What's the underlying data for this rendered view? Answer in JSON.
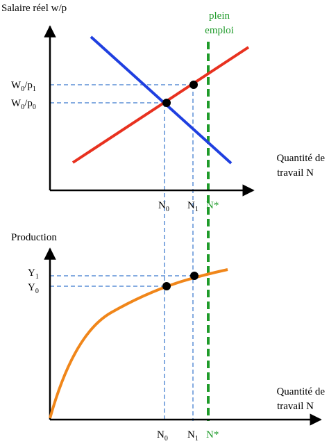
{
  "top_chart": {
    "ylabel": "Salaire réel w/p",
    "xlabel_line1": "Quantité de",
    "xlabel_line2": "travail N",
    "annotation_line1": "plein",
    "annotation_line2": "emploi",
    "y_ticks": [
      {
        "base": "W",
        "sub1": "0",
        "mid": "/p",
        "sub2": "1"
      },
      {
        "base": "W",
        "sub1": "0",
        "mid": "/p",
        "sub2": "0"
      }
    ],
    "x_ticks": [
      {
        "base": "N",
        "sub": "0"
      },
      {
        "base": "N",
        "sub": "1"
      },
      {
        "base": "N*",
        "sub": ""
      }
    ],
    "curves": [
      {
        "name": "demande-de-travail",
        "color": "#1f3fe0"
      },
      {
        "name": "offre-de-travail",
        "color": "#e8311f"
      }
    ],
    "full_employment_color": "#1f9b2a"
  },
  "bottom_chart": {
    "ylabel": "Production",
    "xlabel_line1": "Quantité de",
    "xlabel_line2": "travail N",
    "y_ticks": [
      {
        "base": "Y",
        "sub": "1"
      },
      {
        "base": "Y",
        "sub": "0"
      }
    ],
    "x_ticks": [
      {
        "base": "N",
        "sub": "0"
      },
      {
        "base": "N",
        "sub": "1"
      },
      {
        "base": "N*",
        "sub": ""
      }
    ],
    "curves": [
      {
        "name": "fonction-de-production",
        "color": "#f0861a"
      }
    ]
  },
  "colors": {
    "guide_dashed": "#5b8fd6",
    "axis": "#000000",
    "point": "#000000"
  }
}
